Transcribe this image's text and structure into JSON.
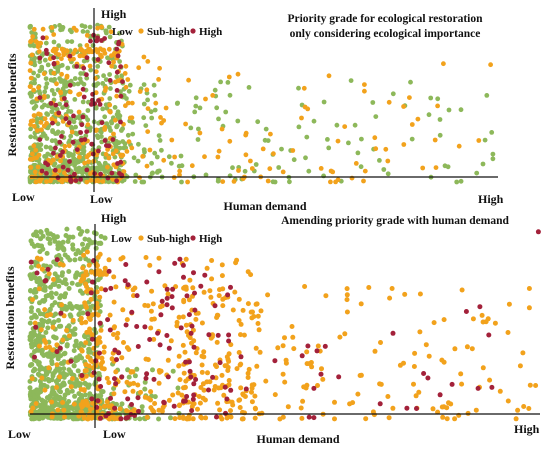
{
  "chart_data": [
    {
      "type": "scatter",
      "title": "Priority grade for ecological restoration only considering ecological importance",
      "title_lines": [
        "Priority grade for ecological restoration",
        "only considering ecological importance"
      ],
      "xlabel": "Human demand",
      "ylabel": "Restoration benefits",
      "x_low_label": "Low",
      "x_high_label": "High",
      "origin_low_label": "Low",
      "y_high_label": "High",
      "legend": [
        {
          "name": "Low",
          "color": "#8db85a"
        },
        {
          "name": "Sub-high",
          "color": "#f2a21c"
        },
        {
          "name": "High",
          "color": "#a3213a"
        }
      ],
      "legend_position": "top-left",
      "xlim": [
        0,
        1
      ],
      "ylim": [
        0,
        1
      ],
      "grid": false,
      "seed": 1337,
      "series": [
        {
          "name": "Low",
          "color": "#8db85a",
          "clusters": [
            {
              "n": 620,
              "x": [
                0.0,
                0.2
              ],
              "y": [
                0.0,
                1.0
              ],
              "x_skew": 1.3,
              "y_skew": 1.6
            },
            {
              "n": 120,
              "x": [
                0.0,
                0.2
              ],
              "y": [
                0.0,
                0.1
              ],
              "x_skew": 1,
              "y_skew": 1
            },
            {
              "n": 160,
              "x": [
                0.2,
                1.0
              ],
              "y": [
                0.0,
                0.65
              ],
              "x_skew": 2.2,
              "y_skew": 1.6
            }
          ]
        },
        {
          "name": "Sub-high",
          "color": "#f2a21c",
          "clusters": [
            {
              "n": 200,
              "x": [
                0.0,
                0.2
              ],
              "y": [
                0.0,
                1.0
              ],
              "x_skew": 1.2,
              "y_skew": 1.5
            },
            {
              "n": 40,
              "x": [
                0.02,
                0.2
              ],
              "y": [
                0.8,
                0.85
              ],
              "x_skew": 1,
              "y_skew": 1
            },
            {
              "n": 110,
              "x": [
                0.2,
                1.0
              ],
              "y": [
                0.0,
                0.8
              ],
              "x_skew": 1.6,
              "y_skew": 1.4
            }
          ]
        },
        {
          "name": "High",
          "color": "#a3213a",
          "clusters": [
            {
              "n": 85,
              "x": [
                0.02,
                0.2
              ],
              "y": [
                0.05,
                0.95
              ],
              "x_skew": 1,
              "y_skew": 1.2
            },
            {
              "n": 15,
              "x": [
                0.02,
                0.2
              ],
              "y": [
                0.0,
                0.06
              ],
              "x_skew": 1,
              "y_skew": 1
            }
          ]
        }
      ]
    },
    {
      "type": "scatter",
      "title": "Amending priority grade with human demand",
      "title_lines": [
        "Amending priority grade with human demand"
      ],
      "xlabel": "Human demand",
      "ylabel": "Restoration benefits",
      "x_low_label": "Low",
      "x_high_label": "High",
      "origin_low_label": "Low",
      "y_high_label": "High",
      "legend": [
        {
          "name": "Low",
          "color": "#8db85a"
        },
        {
          "name": "Sub-high",
          "color": "#f2a21c"
        },
        {
          "name": "High",
          "color": "#a3213a"
        }
      ],
      "legend_position": "top-left",
      "xlim": [
        0,
        1
      ],
      "ylim": [
        0,
        1
      ],
      "grid": false,
      "seed": 4242,
      "series": [
        {
          "name": "Low",
          "color": "#8db85a",
          "clusters": [
            {
              "n": 700,
              "x": [
                0.0,
                0.14
              ],
              "y": [
                0.0,
                1.0
              ],
              "x_skew": 1.2,
              "y_skew": 1.5
            },
            {
              "n": 140,
              "x": [
                0.0,
                0.2
              ],
              "y": [
                0.0,
                0.09
              ],
              "x_skew": 1.3,
              "y_skew": 1
            },
            {
              "n": 40,
              "x": [
                0.14,
                0.3
              ],
              "y": [
                0.0,
                0.3
              ],
              "x_skew": 1.5,
              "y_skew": 1.8
            }
          ]
        },
        {
          "name": "Sub-high",
          "color": "#f2a21c",
          "clusters": [
            {
              "n": 330,
              "x": [
                0.1,
                0.45
              ],
              "y": [
                0.0,
                0.85
              ],
              "x_skew": 1.4,
              "y_skew": 1.6
            },
            {
              "n": 80,
              "x": [
                0.0,
                0.14
              ],
              "y": [
                0.0,
                0.9
              ],
              "x_skew": 1,
              "y_skew": 1.4
            },
            {
              "n": 200,
              "x": [
                0.3,
                1.0
              ],
              "y": [
                0.0,
                0.7
              ],
              "x_skew": 1.6,
              "y_skew": 1.5
            }
          ]
        },
        {
          "name": "High",
          "color": "#a3213a",
          "clusters": [
            {
              "n": 110,
              "x": [
                0.12,
                0.4
              ],
              "y": [
                0.0,
                0.85
              ],
              "x_skew": 1.3,
              "y_skew": 1.2
            },
            {
              "n": 25,
              "x": [
                0.4,
                0.95
              ],
              "y": [
                0.0,
                0.6
              ],
              "x_skew": 1.3,
              "y_skew": 1
            },
            {
              "n": 15,
              "x": [
                0.0,
                0.13
              ],
              "y": [
                0.15,
                0.85
              ],
              "x_skew": 1,
              "y_skew": 1
            }
          ]
        },
        {
          "name": "High",
          "color": "#a3213a",
          "points": [
            [
              0.995,
              0.98
            ]
          ]
        }
      ]
    }
  ]
}
